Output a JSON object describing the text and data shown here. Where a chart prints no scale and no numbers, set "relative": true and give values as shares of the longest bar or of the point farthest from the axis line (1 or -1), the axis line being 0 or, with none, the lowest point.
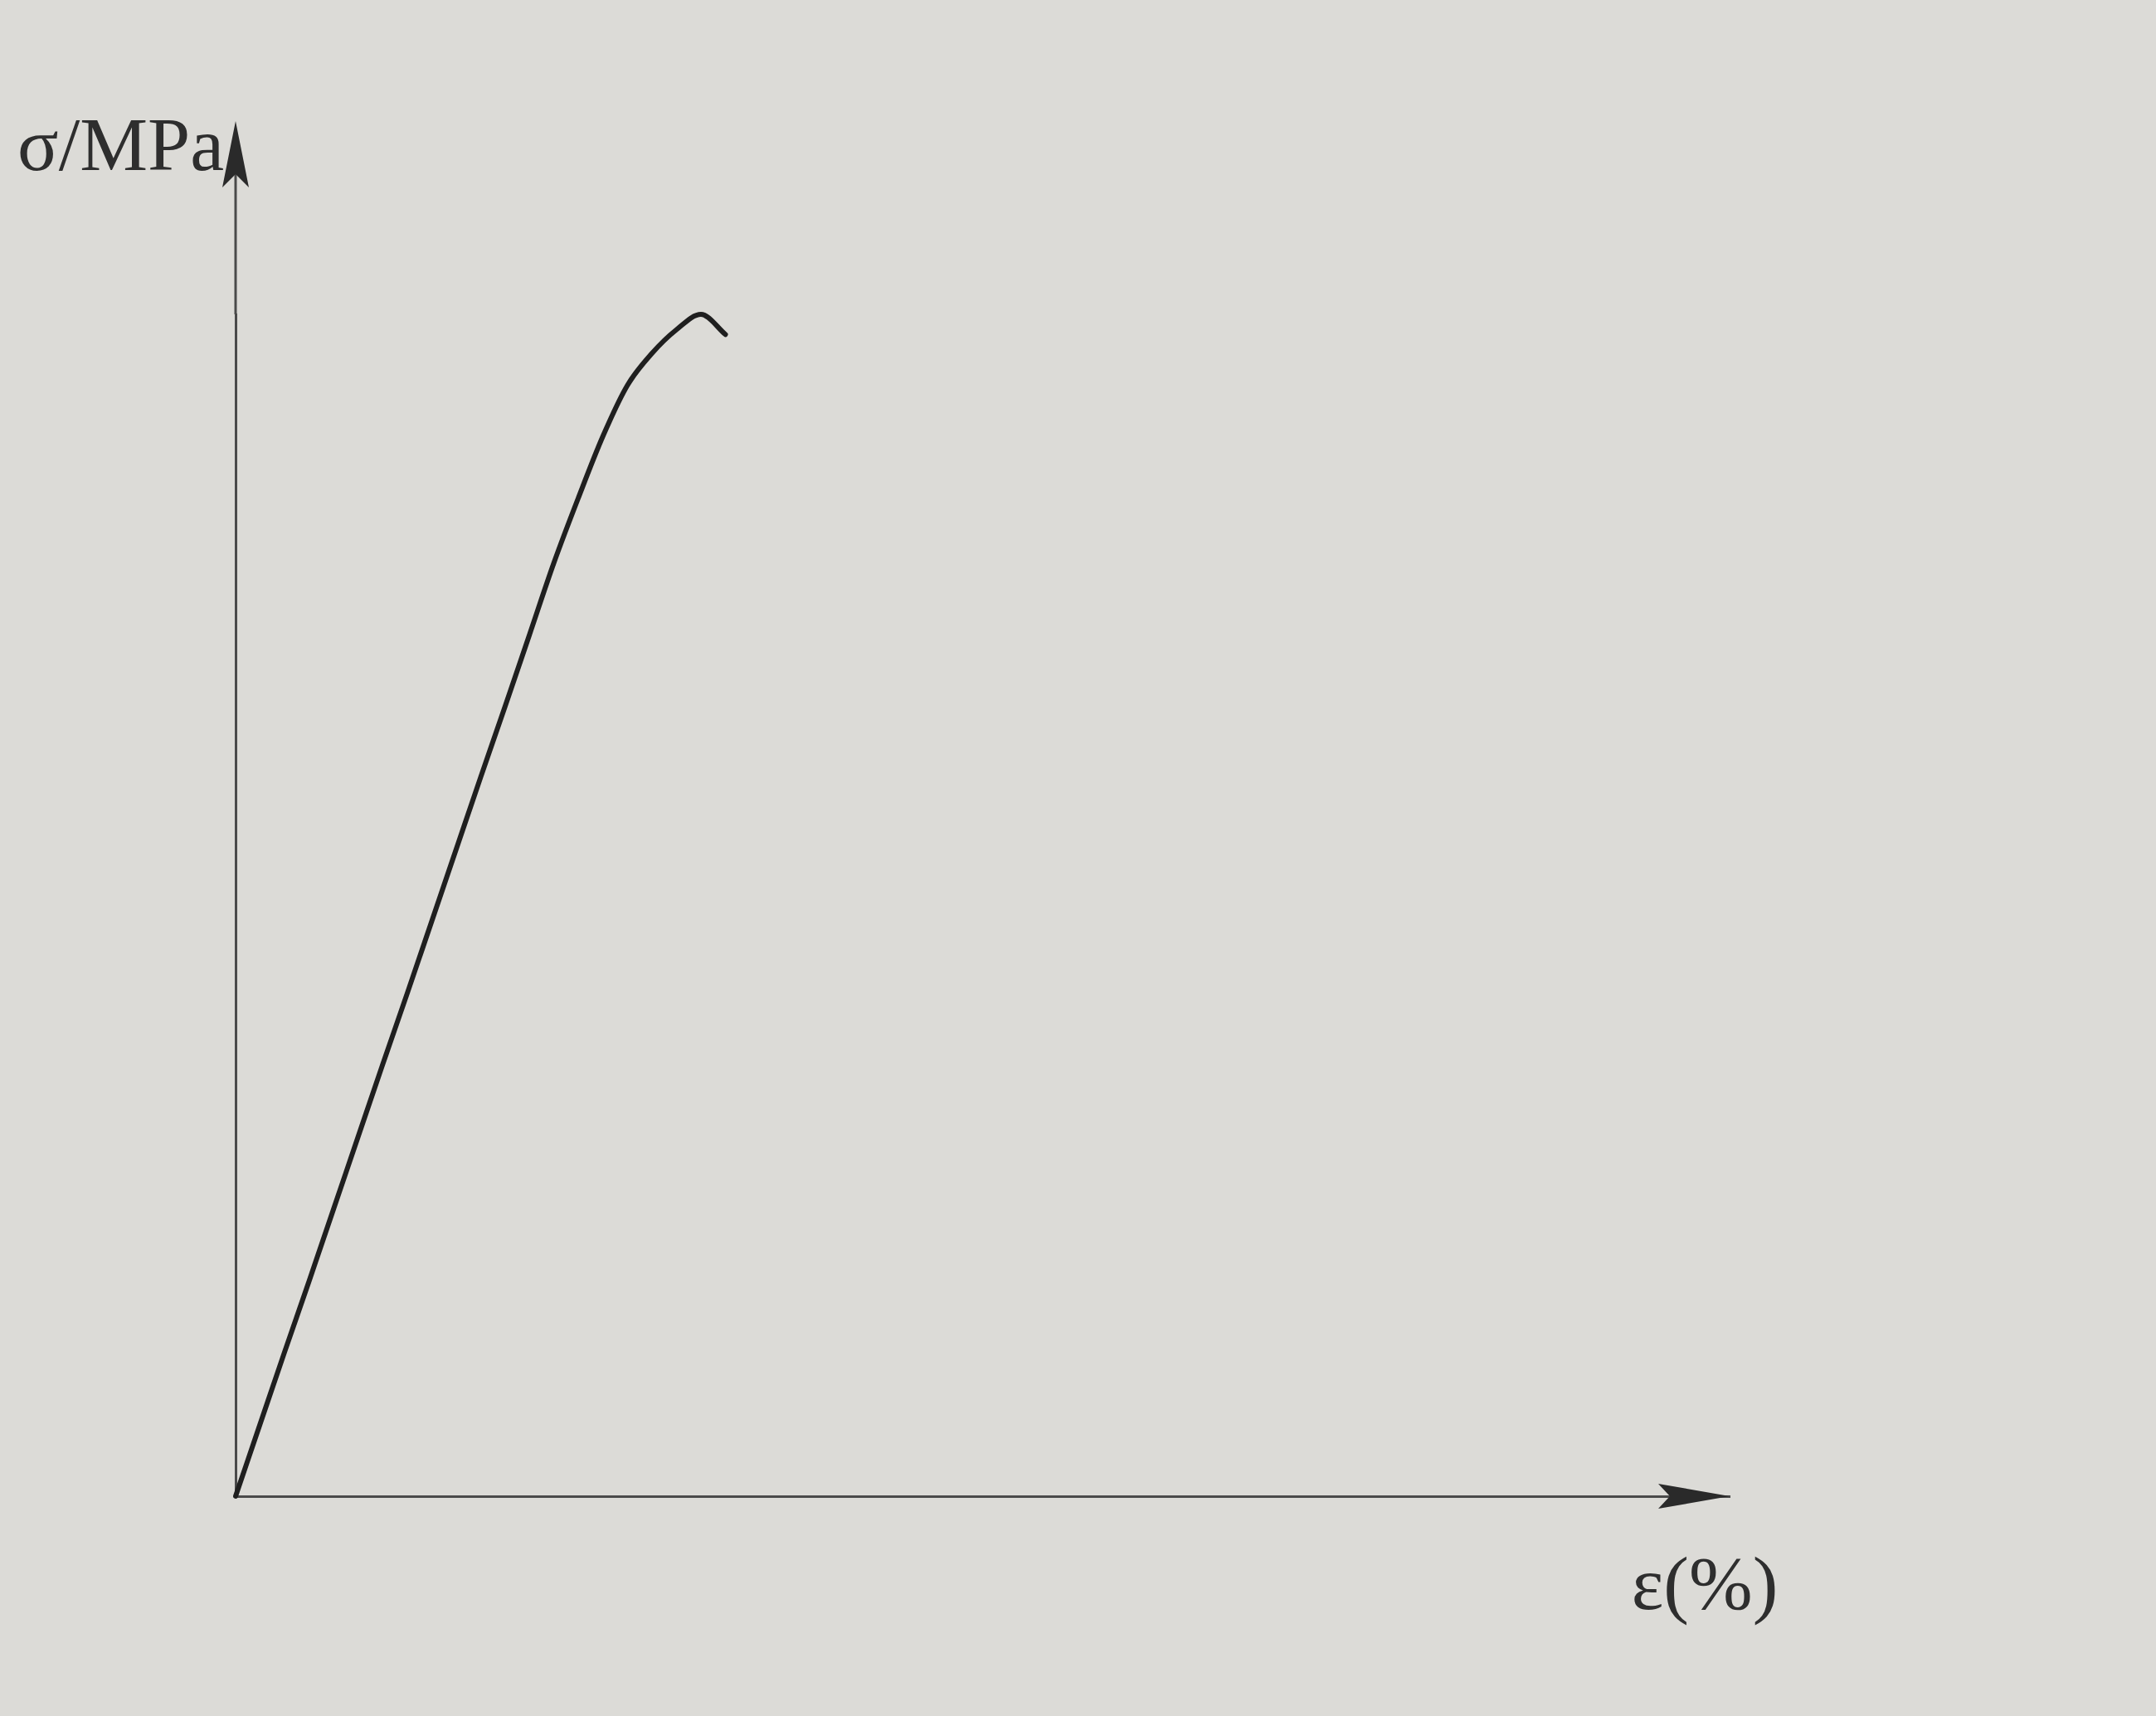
{
  "chart_data": {
    "type": "line",
    "xlabel": "ε(%)",
    "ylabel": "σ/MPa",
    "relative": true,
    "categories": [
      null,
      null,
      null,
      null,
      null,
      null,
      null,
      null,
      null,
      null,
      null,
      null,
      null,
      null,
      null,
      null,
      null,
      null,
      null,
      null,
      null,
      null,
      null,
      null,
      null,
      null,
      null,
      null,
      null,
      null,
      null,
      null,
      null,
      null,
      null,
      null,
      null,
      null,
      null,
      null,
      null,
      null,
      null,
      null,
      null,
      null,
      null,
      null,
      null,
      null,
      null,
      null,
      null,
      null,
      null,
      null,
      null,
      null,
      null,
      null,
      null,
      null
    ],
    "values": [
      0,
      0.061,
      0.122,
      0.182,
      0.243,
      0.304,
      0.365,
      0.425,
      0.486,
      0.547,
      0.608,
      0.668,
      0.729,
      0.79,
      0.845,
      0.897,
      0.94,
      0.967,
      0.987,
      1,
      0.983,
      null,
      null,
      null,
      null,
      null,
      null,
      null,
      null,
      null,
      null,
      null,
      null,
      null,
      null,
      null,
      null,
      null,
      null,
      null,
      null,
      null,
      null,
      null,
      null,
      null,
      null,
      null,
      null,
      null,
      null,
      null,
      null,
      null,
      null,
      null,
      null,
      null,
      null,
      null,
      null,
      null
    ],
    "color": "#1f1f1f"
  }
}
